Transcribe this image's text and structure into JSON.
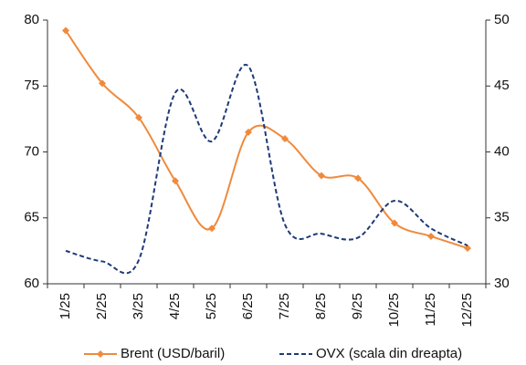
{
  "chart_data": {
    "type": "line",
    "categories": [
      "1/25",
      "2/25",
      "3/25",
      "4/25",
      "5/25",
      "6/25",
      "7/25",
      "8/25",
      "9/25",
      "10/25",
      "11/25",
      "12/25"
    ],
    "series": [
      {
        "name": "Brent (USD/baril)",
        "color": "#ef8a3c",
        "values": [
          79.2,
          75.2,
          72.6,
          67.8,
          64.2,
          71.5,
          71.0,
          68.2,
          68.0,
          64.6,
          63.6,
          62.7
        ]
      },
      {
        "name": "OVX (scala din dreapta)",
        "color": "#1f3a78",
        "axis": "y2",
        "values": [
          32.5,
          31.7,
          31.8,
          44.5,
          40.8,
          46.5,
          34.5,
          33.8,
          33.5,
          36.3,
          34.2,
          32.9
        ]
      }
    ],
    "ylim": [
      60,
      80
    ],
    "yticks": [
      60,
      65,
      70,
      75,
      80
    ],
    "y2lim": [
      30,
      50
    ],
    "y2ticks": [
      30,
      35,
      40,
      45,
      50
    ],
    "grid": false
  }
}
